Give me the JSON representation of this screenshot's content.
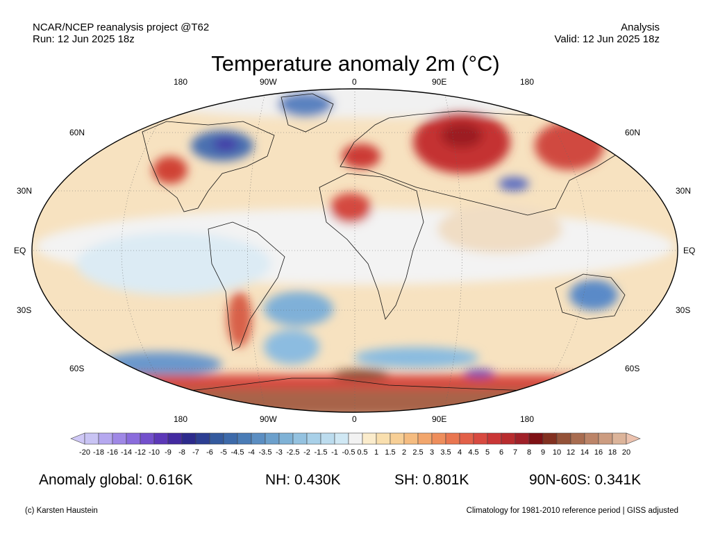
{
  "header": {
    "source": "NCAR/NCEP reanalysis project @T62",
    "run": "Run: 12 Jun 2025 18z",
    "type": "Analysis",
    "valid": "Valid: 12 Jun 2025 18z"
  },
  "title": "Temperature anomaly 2m (°C)",
  "map": {
    "lon_labels": [
      "180",
      "90W",
      "0",
      "90E",
      "180"
    ],
    "lat_labels_left": [
      "60N",
      "30N",
      "EQ",
      "30S",
      "60S"
    ],
    "lat_labels_right": [
      "60N",
      "30N",
      "EQ",
      "30S",
      "60S"
    ]
  },
  "colorbar": {
    "labels": [
      "-20",
      "-18",
      "-16",
      "-14",
      "-12",
      "-10",
      "-9",
      "-8",
      "-7",
      "-6",
      "-5",
      "-4.5",
      "-4",
      "-3.5",
      "-3",
      "-2.5",
      "-2",
      "-1.5",
      "-1",
      "-0.5",
      "0.5",
      "1",
      "1.5",
      "2",
      "2.5",
      "3",
      "3.5",
      "4",
      "4.5",
      "5",
      "6",
      "7",
      "8",
      "9",
      "10",
      "12",
      "14",
      "16",
      "18",
      "20"
    ],
    "colors": [
      "#c9c4f4",
      "#b5a8ef",
      "#9f88e6",
      "#8a6cdc",
      "#7350cc",
      "#5c38b8",
      "#432aa0",
      "#2c2a8c",
      "#2c3e92",
      "#345a9e",
      "#3d6aaa",
      "#4a7cb6",
      "#5b8ec2",
      "#6ca0cc",
      "#7fb2d6",
      "#94c2e0",
      "#a8d0e8",
      "#bcdcee",
      "#d0e8f4",
      "#f2f2f2",
      "#fbeccc",
      "#f9dfae",
      "#f7cf96",
      "#f5bc80",
      "#f2a66c",
      "#ee8e5c",
      "#e97650",
      "#e26048",
      "#d84a40",
      "#ca3636",
      "#b82c2e",
      "#a02028",
      "#7e1014",
      "#823020",
      "#945238",
      "#a86c50",
      "#bc8468",
      "#cc9c80",
      "#dcb49a"
    ],
    "left_color": "#cfc8f6",
    "right_color": "#ecc2ae"
  },
  "stats": {
    "global": "Anomaly global: 0.616K",
    "nh": "NH: 0.430K",
    "sh": "SH: 0.801K",
    "arctic": "90N-60S: 0.341K"
  },
  "footer": {
    "credit": "(c) Karsten Haustein",
    "note": "Climatology for 1981-2010 reference period | GISS adjusted"
  }
}
